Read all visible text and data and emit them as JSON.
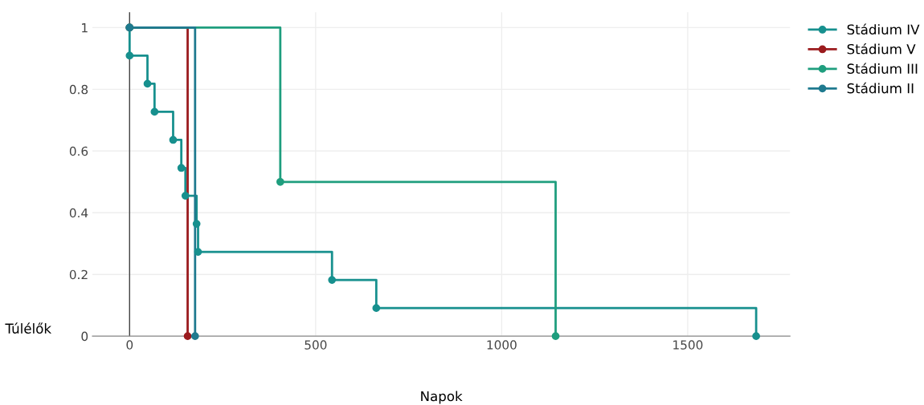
{
  "chart_data": {
    "type": "step",
    "xlabel": "Napok",
    "ylabel": "Túlélők",
    "xlim": [
      -100,
      1775
    ],
    "xticks": [
      0,
      500,
      1000,
      1500
    ],
    "ylim": [
      0,
      1.05
    ],
    "yticks": [
      0,
      0.2,
      0.4,
      0.6,
      0.8,
      1
    ],
    "grid": true,
    "legend": "top right",
    "marker": "circle",
    "line_style": "solid",
    "ref_lines": [
      {
        "axis": "x",
        "value": 0,
        "color": "#444444"
      }
    ],
    "series": [
      {
        "name": "Stádium IV",
        "color": "#17908e",
        "x": [
          0,
          0,
          48,
          67,
          117,
          139,
          150,
          180,
          184,
          544,
          663,
          1684
        ],
        "values": [
          1,
          0.909,
          0.818,
          0.727,
          0.636,
          0.545,
          0.455,
          0.364,
          0.273,
          0.182,
          0.091,
          0
        ]
      },
      {
        "name": "Stádium V",
        "color": "#9b1b1e",
        "x": [
          0,
          156
        ],
        "values": [
          1,
          0
        ]
      },
      {
        "name": "Stádium III",
        "color": "#1f9e7e",
        "x": [
          0,
          405,
          1145
        ],
        "values": [
          1,
          0.5,
          0
        ]
      },
      {
        "name": "Stádium II",
        "color": "#1f7a8f",
        "x": [
          0,
          176
        ],
        "values": [
          1,
          0
        ]
      }
    ]
  }
}
